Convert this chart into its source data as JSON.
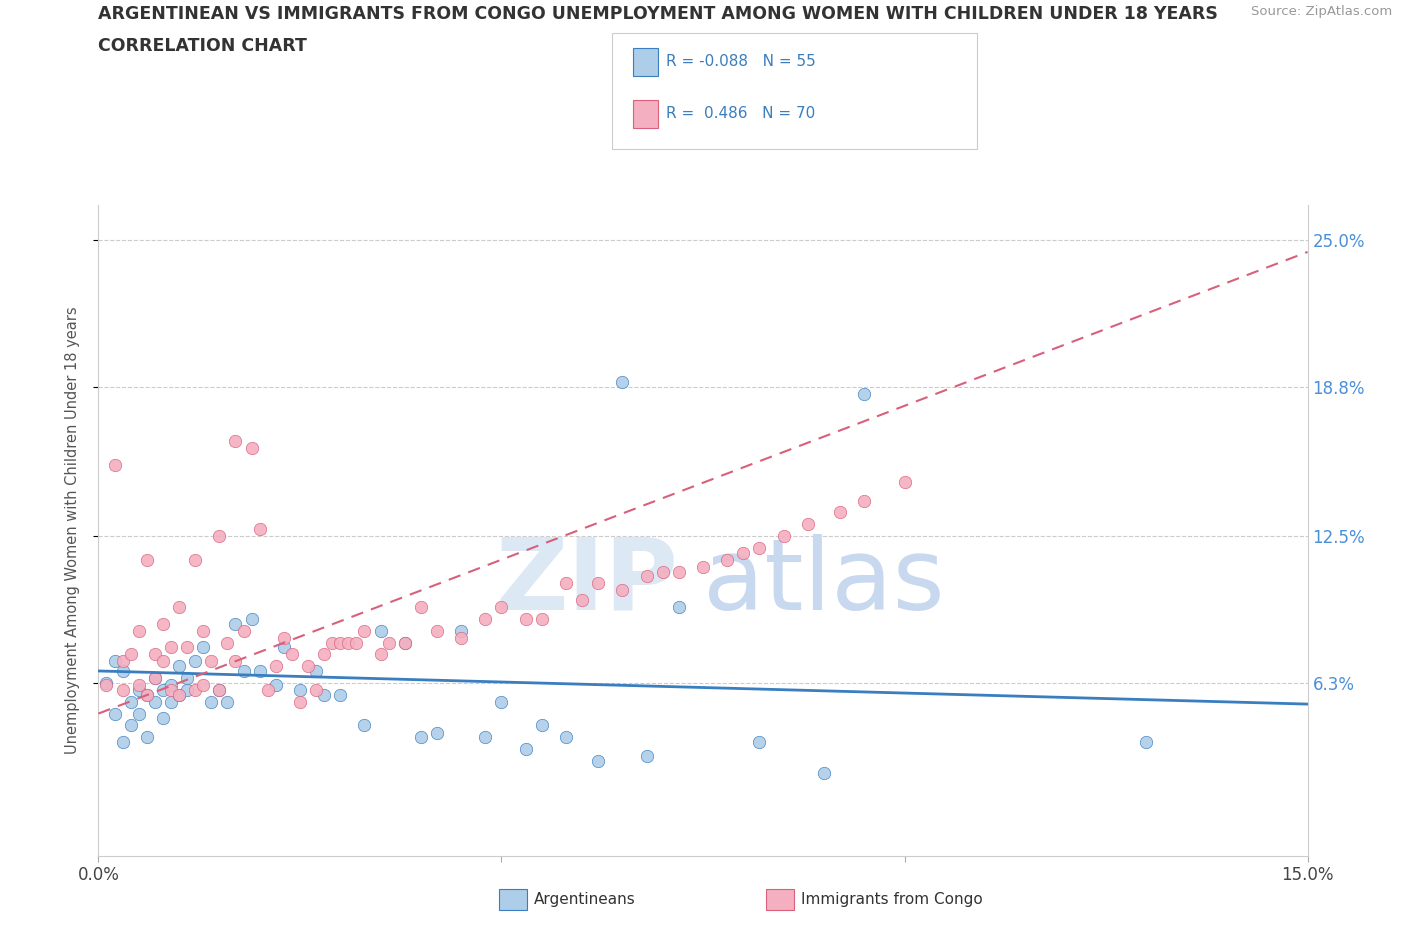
{
  "title_line1": "ARGENTINEAN VS IMMIGRANTS FROM CONGO UNEMPLOYMENT AMONG WOMEN WITH CHILDREN UNDER 18 YEARS",
  "title_line2": "CORRELATION CHART",
  "source_text": "Source: ZipAtlas.com",
  "ylabel": "Unemployment Among Women with Children Under 18 years",
  "xlim": [
    0.0,
    0.15
  ],
  "ylim": [
    -0.01,
    0.265
  ],
  "yticks": [
    0.063,
    0.125,
    0.188,
    0.25
  ],
  "ytick_labels": [
    "6.3%",
    "12.5%",
    "18.8%",
    "25.0%"
  ],
  "xticks": [
    0.0,
    0.05,
    0.1,
    0.15
  ],
  "xtick_labels": [
    "0.0%",
    "",
    "",
    "15.0%"
  ],
  "watermark_zip": "ZIP",
  "watermark_atlas": "atlas",
  "legend_label_argentinean": "Argentineans",
  "legend_label_congo": "Immigrants from Congo",
  "color_argentinean": "#aecde8",
  "color_congo": "#f4afc0",
  "color_line_argentinean": "#3a7ebf",
  "color_line_congo": "#d9607a",
  "title_color": "#333333",
  "source_color": "#999999",
  "ytick_color": "#4a90d9",
  "grid_color": "#cccccc",
  "legend_R_color": "#3a7ebf",
  "legend_N_color": "#3a7ebf",
  "argentinean_x": [
    0.001,
    0.002,
    0.002,
    0.003,
    0.003,
    0.004,
    0.004,
    0.005,
    0.005,
    0.006,
    0.006,
    0.007,
    0.007,
    0.008,
    0.008,
    0.009,
    0.009,
    0.01,
    0.01,
    0.011,
    0.011,
    0.012,
    0.013,
    0.014,
    0.015,
    0.016,
    0.017,
    0.018,
    0.019,
    0.02,
    0.022,
    0.023,
    0.025,
    0.027,
    0.028,
    0.03,
    0.033,
    0.035,
    0.038,
    0.04,
    0.042,
    0.045,
    0.048,
    0.05,
    0.053,
    0.055,
    0.058,
    0.062,
    0.065,
    0.068,
    0.072,
    0.082,
    0.09,
    0.095,
    0.13
  ],
  "argentinean_y": [
    0.063,
    0.05,
    0.072,
    0.038,
    0.068,
    0.045,
    0.055,
    0.05,
    0.06,
    0.058,
    0.04,
    0.065,
    0.055,
    0.06,
    0.048,
    0.055,
    0.062,
    0.07,
    0.058,
    0.06,
    0.065,
    0.072,
    0.078,
    0.055,
    0.06,
    0.055,
    0.088,
    0.068,
    0.09,
    0.068,
    0.062,
    0.078,
    0.06,
    0.068,
    0.058,
    0.058,
    0.045,
    0.085,
    0.08,
    0.04,
    0.042,
    0.085,
    0.04,
    0.055,
    0.035,
    0.045,
    0.04,
    0.03,
    0.19,
    0.032,
    0.095,
    0.038,
    0.025,
    0.185,
    0.038
  ],
  "congo_x": [
    0.001,
    0.002,
    0.003,
    0.003,
    0.004,
    0.005,
    0.005,
    0.006,
    0.006,
    0.007,
    0.007,
    0.008,
    0.008,
    0.009,
    0.009,
    0.01,
    0.01,
    0.011,
    0.012,
    0.012,
    0.013,
    0.013,
    0.014,
    0.015,
    0.015,
    0.016,
    0.017,
    0.017,
    0.018,
    0.019,
    0.02,
    0.021,
    0.022,
    0.023,
    0.024,
    0.025,
    0.026,
    0.027,
    0.028,
    0.029,
    0.03,
    0.031,
    0.032,
    0.033,
    0.035,
    0.036,
    0.038,
    0.04,
    0.042,
    0.045,
    0.048,
    0.05,
    0.053,
    0.055,
    0.058,
    0.06,
    0.062,
    0.065,
    0.068,
    0.07,
    0.072,
    0.075,
    0.078,
    0.08,
    0.082,
    0.085,
    0.088,
    0.092,
    0.095,
    0.1
  ],
  "congo_y": [
    0.062,
    0.155,
    0.06,
    0.072,
    0.075,
    0.062,
    0.085,
    0.058,
    0.115,
    0.065,
    0.075,
    0.072,
    0.088,
    0.06,
    0.078,
    0.058,
    0.095,
    0.078,
    0.06,
    0.115,
    0.062,
    0.085,
    0.072,
    0.06,
    0.125,
    0.08,
    0.072,
    0.165,
    0.085,
    0.162,
    0.128,
    0.06,
    0.07,
    0.082,
    0.075,
    0.055,
    0.07,
    0.06,
    0.075,
    0.08,
    0.08,
    0.08,
    0.08,
    0.085,
    0.075,
    0.08,
    0.08,
    0.095,
    0.085,
    0.082,
    0.09,
    0.095,
    0.09,
    0.09,
    0.105,
    0.098,
    0.105,
    0.102,
    0.108,
    0.11,
    0.11,
    0.112,
    0.115,
    0.118,
    0.12,
    0.125,
    0.13,
    0.135,
    0.14,
    0.148
  ],
  "arg_trend_x": [
    0.0,
    0.15
  ],
  "arg_trend_y": [
    0.068,
    0.054
  ],
  "congo_trend_x": [
    0.0,
    0.15
  ],
  "congo_trend_y": [
    0.05,
    0.245
  ]
}
